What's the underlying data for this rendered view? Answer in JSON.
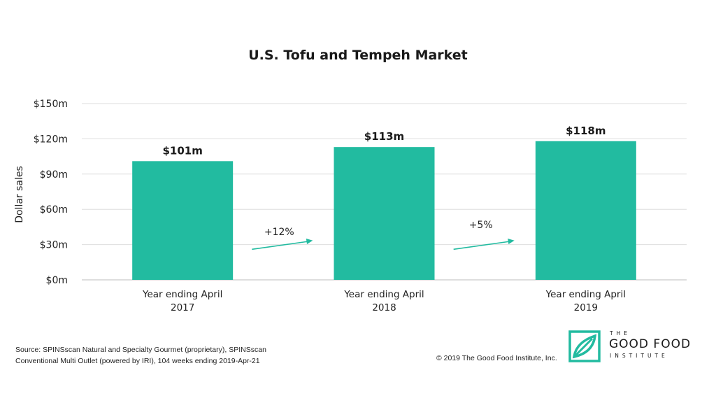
{
  "chart_data": {
    "type": "bar",
    "title": "U.S. Tofu and Tempeh Market",
    "ylabel": "Dollar sales",
    "xlabel": "",
    "ylim": [
      0,
      150
    ],
    "y_ticks": [
      "$0m",
      "$30m",
      "$60m",
      "$90m",
      "$120m",
      "$150m"
    ],
    "y_tick_values": [
      0,
      30,
      60,
      90,
      120,
      150
    ],
    "grid": true,
    "categories": [
      [
        "Year ending April",
        "2017"
      ],
      [
        "Year ending April",
        "2018"
      ],
      [
        "Year ending April",
        "2019"
      ]
    ],
    "values": [
      101,
      113,
      118
    ],
    "data_labels": [
      "$101m",
      "$113m",
      "$118m"
    ],
    "growth_annotations": [
      "+12%",
      "+5%"
    ],
    "bar_color": "#22BBA0",
    "arrow_color": "#22BBA0"
  },
  "footer": {
    "source_line_1": "Source: SPINSscan Natural and Specialty Gourmet (proprietary), SPINSscan",
    "source_line_2": "Conventional Multi Outlet (powered by IRI), 104 weeks ending 2019-Apr-21",
    "copyright": "© 2019 The Good Food Institute, Inc."
  },
  "logo": {
    "line_1": "THE",
    "line_2": "GOOD FOOD",
    "line_3": "INSTITUTE",
    "color": "#22BBA0"
  }
}
